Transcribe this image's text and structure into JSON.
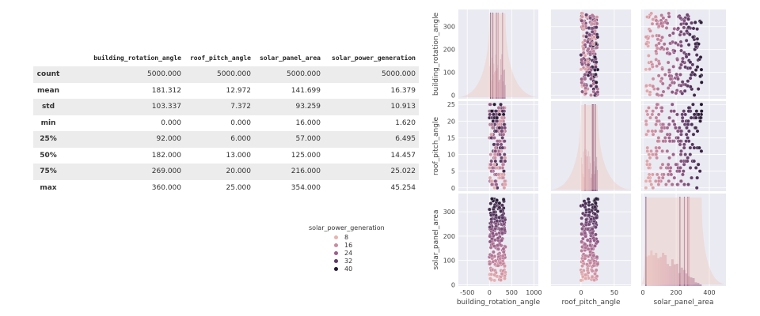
{
  "table": {
    "columns": [
      "building_rotation_angle",
      "roof_pitch_angle",
      "solar_panel_area",
      "solar_power_generation"
    ],
    "rows": [
      {
        "label": "count",
        "values": [
          "5000.000",
          "5000.000",
          "5000.000",
          "5000.000"
        ]
      },
      {
        "label": "mean",
        "values": [
          "181.312",
          "12.972",
          "141.699",
          "16.379"
        ]
      },
      {
        "label": "std",
        "values": [
          "103.337",
          "7.372",
          "93.259",
          "10.913"
        ]
      },
      {
        "label": "min",
        "values": [
          "0.000",
          "0.000",
          "16.000",
          "1.620"
        ]
      },
      {
        "label": "25%",
        "values": [
          "92.000",
          "6.000",
          "57.000",
          "6.495"
        ]
      },
      {
        "label": "50%",
        "values": [
          "182.000",
          "13.000",
          "125.000",
          "14.457"
        ]
      },
      {
        "label": "75%",
        "values": [
          "269.000",
          "20.000",
          "216.000",
          "25.022"
        ]
      },
      {
        "label": "max",
        "values": [
          "360.000",
          "25.000",
          "354.000",
          "45.254"
        ]
      }
    ]
  },
  "legend": {
    "title": "solar_power_generation",
    "items": [
      {
        "label": "8",
        "color": "#e8b3b0"
      },
      {
        "label": "16",
        "color": "#c98aa0"
      },
      {
        "label": "24",
        "color": "#9a5f8a"
      },
      {
        "label": "32",
        "color": "#5e3a66"
      },
      {
        "label": "40",
        "color": "#22182e"
      }
    ]
  },
  "chart_data": {
    "type": "scatter",
    "kind": "pairplot",
    "hue": "solar_power_generation",
    "variables": [
      "building_rotation_angle",
      "roof_pitch_angle",
      "solar_panel_area"
    ],
    "ranges": {
      "building_rotation_angle": [
        0,
        360
      ],
      "roof_pitch_angle": [
        0,
        25
      ],
      "solar_panel_area": [
        16,
        354
      ]
    },
    "axes": {
      "building_rotation_angle": {
        "lim_x": [
          -700,
          1100
        ],
        "xticks": [
          "-500",
          "0",
          "500",
          "1000"
        ],
        "xtick_values": [
          -500,
          0,
          500,
          1000
        ],
        "lim_y": [
          -15,
          375
        ],
        "yticks": [
          "0",
          "100",
          "200",
          "300"
        ],
        "ytick_values": [
          0,
          100,
          200,
          300
        ]
      },
      "roof_pitch_angle": {
        "lim_x": [
          -45,
          75
        ],
        "xticks": [
          "0",
          "50"
        ],
        "xtick_values": [
          0,
          50
        ],
        "lim_y": [
          -1,
          26
        ],
        "yticks": [
          "0",
          "5",
          "10",
          "15",
          "20",
          "25"
        ],
        "ytick_values": [
          0,
          5,
          10,
          15,
          20,
          25
        ]
      },
      "solar_panel_area": {
        "lim_x": [
          -10,
          500
        ],
        "xticks": [
          "0",
          "200",
          "400"
        ],
        "xtick_values": [
          0,
          200,
          400
        ],
        "lim_y": [
          -5,
          375
        ],
        "yticks": [
          "0",
          "100",
          "200",
          "300"
        ],
        "ytick_values": [
          0,
          100,
          200,
          300
        ]
      }
    },
    "diagonal": "kde/histogram",
    "grid": true
  }
}
